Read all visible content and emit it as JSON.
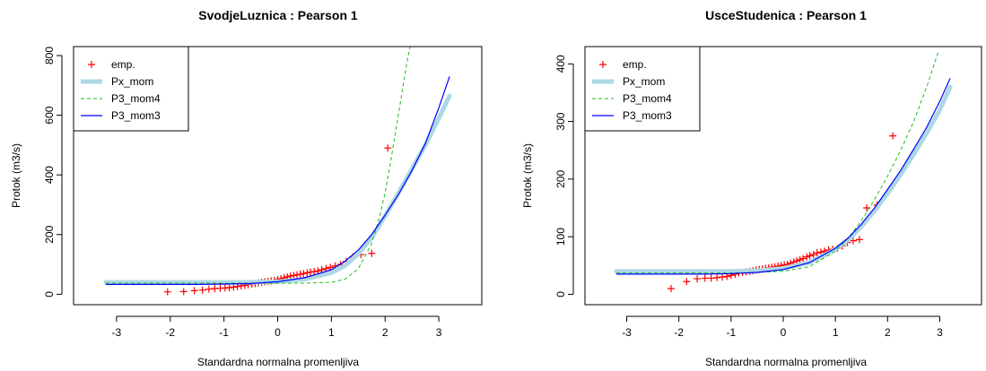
{
  "chart_data": [
    {
      "type": "line",
      "title": "SvodjeLuznica : Pearson 1",
      "xlabel": "Standardna normalna promenljiva",
      "ylabel": "Protok (m3/s)",
      "xlim": [
        -3.8,
        3.8
      ],
      "ylim": [
        -35,
        830
      ],
      "xticks": [
        -3,
        -2,
        -1,
        0,
        1,
        2,
        3
      ],
      "yticks": [
        0,
        200,
        400,
        600,
        800
      ],
      "legend_position": "top-left",
      "legend": [
        {
          "label": "emp.",
          "kind": "point",
          "color": "#ff0000"
        },
        {
          "label": "Px_mom",
          "kind": "thick-line",
          "color": "#add8e6"
        },
        {
          "label": "P3_mom4",
          "kind": "dashed-line",
          "color": "#22bb22"
        },
        {
          "label": "P3_mom3",
          "kind": "line",
          "color": "#0000ff"
        }
      ],
      "series": [
        {
          "name": "emp.",
          "kind": "points",
          "color": "#ff0000",
          "x": [
            -2.05,
            -1.75,
            -1.55,
            -1.4,
            -1.28,
            -1.17,
            -1.07,
            -0.98,
            -0.9,
            -0.82,
            -0.75,
            -0.68,
            -0.61,
            -0.55,
            -0.48,
            -0.42,
            -0.36,
            -0.3,
            -0.24,
            -0.18,
            -0.12,
            -0.06,
            0.0,
            0.06,
            0.12,
            0.18,
            0.24,
            0.3,
            0.36,
            0.42,
            0.48,
            0.55,
            0.61,
            0.68,
            0.75,
            0.82,
            0.9,
            0.98,
            1.07,
            1.17,
            1.28,
            1.4,
            1.55,
            1.75,
            2.05
          ],
          "y": [
            8,
            9,
            12,
            14,
            17,
            19,
            20,
            21,
            22,
            24,
            26,
            28,
            30,
            32,
            34,
            36,
            38,
            40,
            42,
            43,
            45,
            47,
            49,
            52,
            55,
            58,
            61,
            63,
            65,
            67,
            69,
            72,
            74,
            76,
            78,
            82,
            86,
            90,
            95,
            100,
            110,
            125,
            133,
            137,
            490
          ]
        },
        {
          "name": "Px_mom",
          "kind": "thick-line",
          "color": "#add8e6",
          "x": [
            -3.2,
            -2.5,
            -2.0,
            -1.5,
            -1.0,
            -0.5,
            0.0,
            0.5,
            1.0,
            1.25,
            1.5,
            1.75,
            2.0,
            2.25,
            2.5,
            2.75,
            3.0,
            3.2
          ],
          "y": [
            40,
            40,
            40,
            40,
            40,
            40,
            42,
            50,
            72,
            95,
            135,
            190,
            262,
            340,
            420,
            500,
            590,
            665
          ]
        },
        {
          "name": "P3_mom4",
          "kind": "dashed-line",
          "color": "#22bb22",
          "x": [
            -3.2,
            -2.0,
            -1.0,
            0.0,
            0.5,
            1.0,
            1.25,
            1.5,
            1.75,
            1.9,
            2.0,
            2.1,
            2.2,
            2.3,
            2.4,
            2.47
          ],
          "y": [
            37,
            37,
            37,
            37,
            37,
            40,
            50,
            85,
            170,
            260,
            340,
            440,
            550,
            660,
            770,
            835
          ]
        },
        {
          "name": "P3_mom3",
          "kind": "line",
          "color": "#0000ff",
          "x": [
            -3.2,
            -2.5,
            -2.0,
            -1.5,
            -1.0,
            -0.5,
            0.0,
            0.5,
            1.0,
            1.25,
            1.5,
            1.75,
            2.0,
            2.25,
            2.5,
            2.75,
            3.0,
            3.2
          ],
          "y": [
            33,
            33,
            33,
            33,
            34,
            36,
            42,
            55,
            82,
            110,
            148,
            200,
            265,
            335,
            415,
            505,
            625,
            730
          ]
        }
      ]
    },
    {
      "type": "line",
      "title": "UsceStudenica : Pearson 1",
      "xlabel": "Standardna normalna promenljiva",
      "ylabel": "Protok (m3/s)",
      "xlim": [
        -3.8,
        3.8
      ],
      "ylim": [
        -18,
        430
      ],
      "xticks": [
        -3,
        -2,
        -1,
        0,
        1,
        2,
        3
      ],
      "yticks": [
        0,
        100,
        200,
        300,
        400
      ],
      "legend_position": "top-left",
      "legend": [
        {
          "label": "emp.",
          "kind": "point",
          "color": "#ff0000"
        },
        {
          "label": "Px_mom",
          "kind": "thick-line",
          "color": "#add8e6"
        },
        {
          "label": "P3_mom4",
          "kind": "dashed-line",
          "color": "#22bb22"
        },
        {
          "label": "P3_mom3",
          "kind": "line",
          "color": "#0000ff"
        }
      ],
      "series": [
        {
          "name": "emp.",
          "kind": "points",
          "color": "#ff0000",
          "x": [
            -2.15,
            -1.85,
            -1.65,
            -1.5,
            -1.38,
            -1.27,
            -1.17,
            -1.08,
            -1.0,
            -0.92,
            -0.85,
            -0.78,
            -0.71,
            -0.64,
            -0.58,
            -0.52,
            -0.46,
            -0.4,
            -0.34,
            -0.28,
            -0.22,
            -0.16,
            -0.1,
            -0.04,
            0.02,
            0.08,
            0.14,
            0.2,
            0.26,
            0.32,
            0.38,
            0.45,
            0.51,
            0.58,
            0.65,
            0.72,
            0.79,
            0.87,
            0.95,
            1.04,
            1.13,
            1.23,
            1.34,
            1.46,
            1.6,
            1.8,
            2.1
          ],
          "y": [
            10,
            22,
            27,
            28,
            28,
            29,
            30,
            31,
            33,
            35,
            37,
            38,
            39,
            40,
            41,
            42,
            43,
            44,
            45,
            46,
            47,
            48,
            49,
            50,
            51,
            52,
            54,
            56,
            58,
            60,
            62,
            65,
            67,
            69,
            72,
            73,
            75,
            77,
            78,
            80,
            84,
            90,
            93,
            95,
            150,
            155,
            275
          ]
        },
        {
          "name": "Px_mom",
          "kind": "thick-line",
          "color": "#add8e6",
          "x": [
            -3.2,
            -2.5,
            -2.0,
            -1.5,
            -1.0,
            -0.5,
            0.0,
            0.5,
            1.0,
            1.25,
            1.5,
            1.75,
            2.0,
            2.25,
            2.5,
            2.75,
            3.0,
            3.2
          ],
          "y": [
            40,
            40,
            40,
            40,
            40,
            41,
            45,
            55,
            78,
            95,
            118,
            145,
            175,
            208,
            243,
            280,
            320,
            360
          ]
        },
        {
          "name": "P3_mom4",
          "kind": "dashed-line",
          "color": "#22bb22",
          "x": [
            -3.2,
            -2.0,
            -1.0,
            -0.5,
            0.0,
            0.5,
            1.0,
            1.25,
            1.5,
            1.75,
            2.0,
            2.25,
            2.5,
            2.75,
            2.97
          ],
          "y": [
            37,
            37,
            37,
            38,
            40,
            48,
            75,
            98,
            128,
            165,
            205,
            250,
            300,
            360,
            420
          ]
        },
        {
          "name": "P3_mom3",
          "kind": "line",
          "color": "#0000ff",
          "x": [
            -3.2,
            -2.5,
            -2.0,
            -1.5,
            -1.0,
            -0.5,
            0.0,
            0.5,
            1.0,
            1.25,
            1.5,
            1.75,
            2.0,
            2.25,
            2.5,
            2.75,
            3.0,
            3.2
          ],
          "y": [
            35,
            35,
            35,
            35,
            36,
            38,
            43,
            55,
            80,
            98,
            122,
            150,
            182,
            215,
            252,
            290,
            335,
            375
          ]
        }
      ]
    }
  ]
}
